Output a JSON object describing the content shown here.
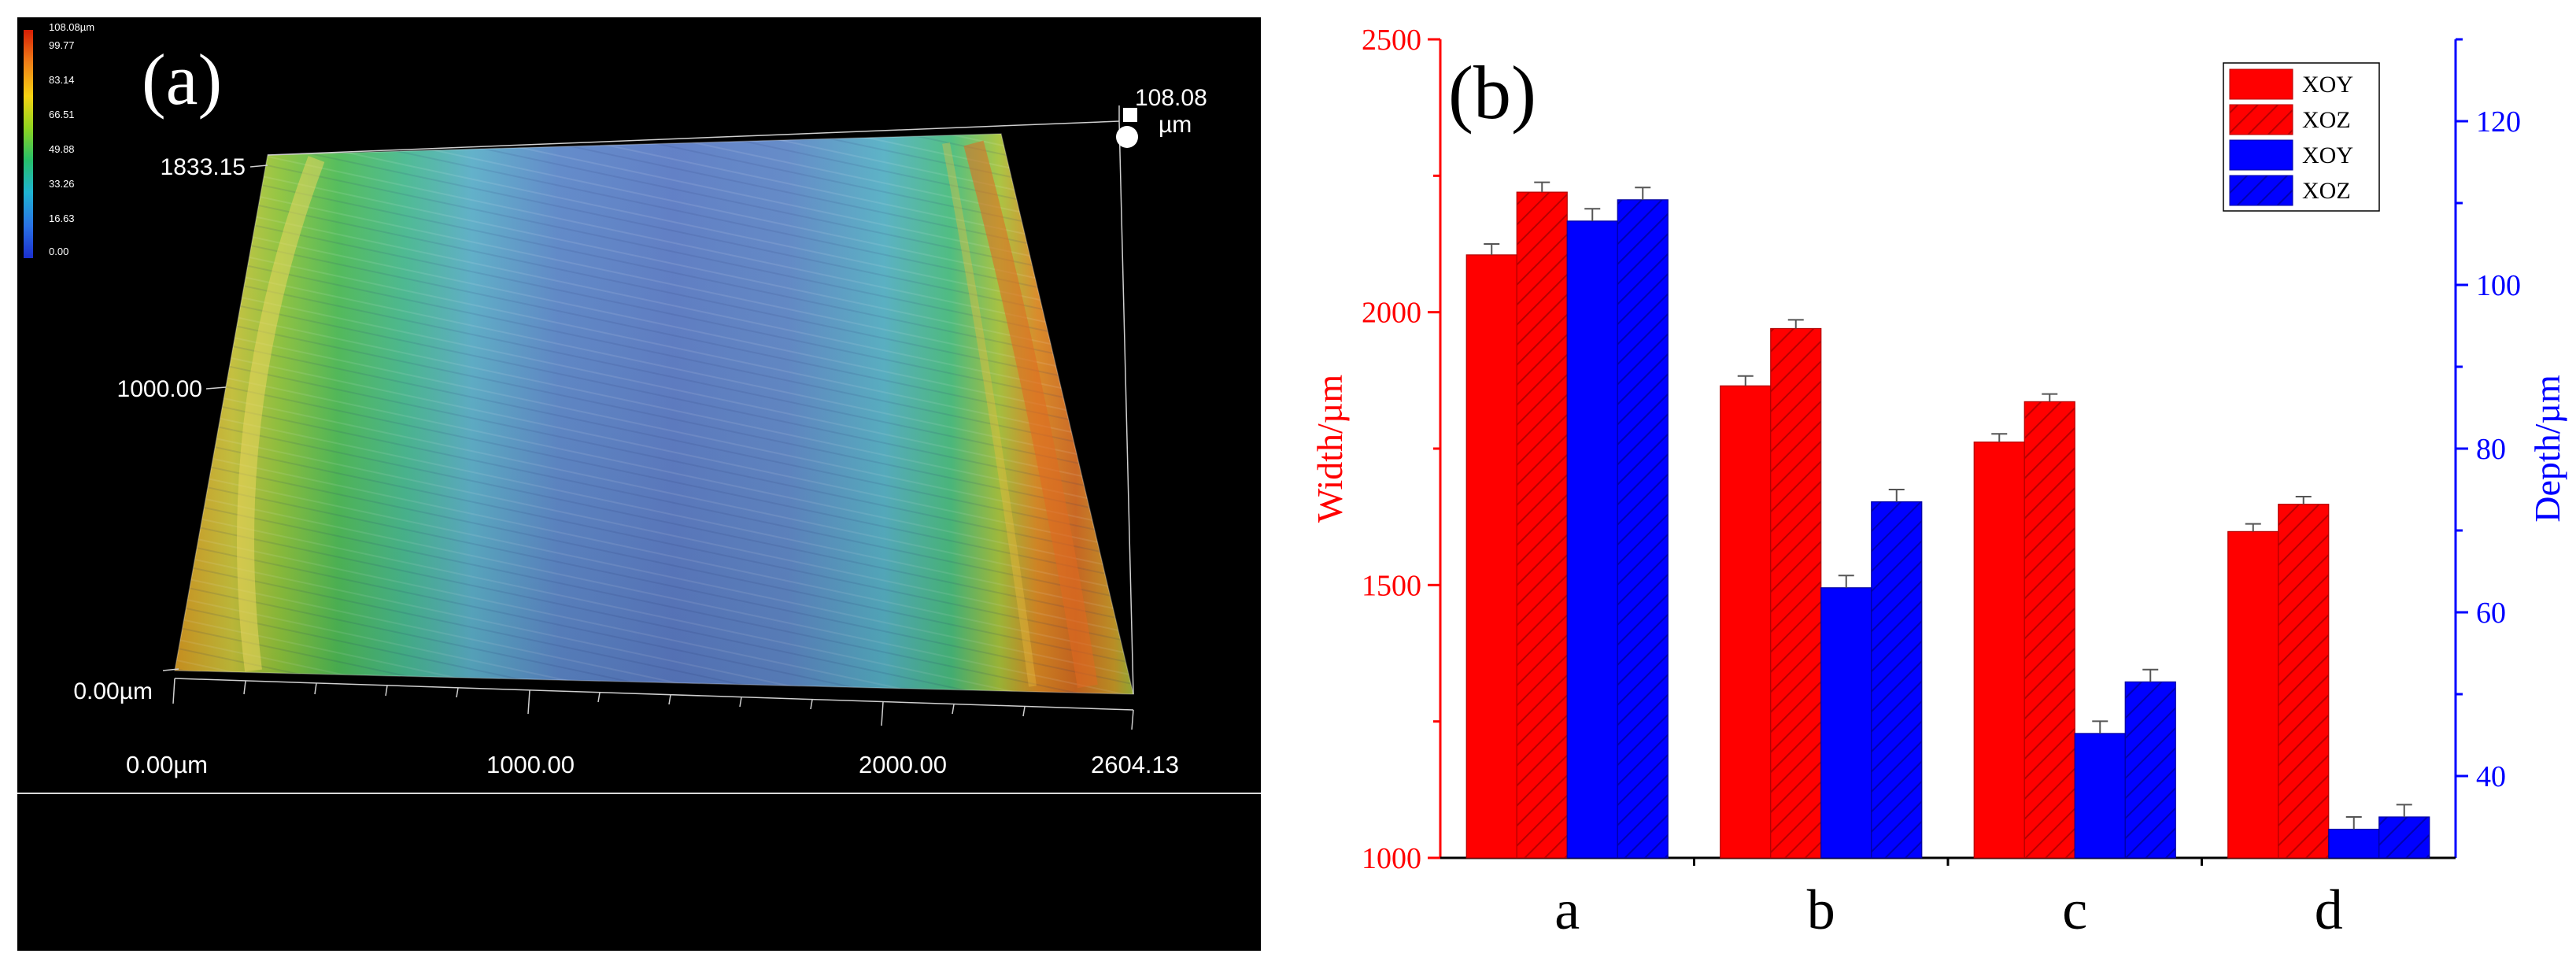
{
  "panel_a": {
    "label": "(a)",
    "colorbar": {
      "ticks": [
        "108.08µm",
        "99.77",
        "83.14",
        "66.51",
        "49.88",
        "33.26",
        "16.63",
        "0.00"
      ],
      "colors": [
        "#d81e05",
        "#f07e18",
        "#f6d312",
        "#8fd420",
        "#27c06a",
        "#1fb5d2",
        "#2a72e6",
        "#1b2fcf"
      ]
    },
    "max_value": "108.08",
    "max_unit": "µm",
    "y_ticks": [
      "1833.15",
      "1000.00",
      "0.00µm"
    ],
    "x_ticks": [
      "0.00µm",
      "1000.00",
      "2000.00",
      "2604.13"
    ]
  },
  "panel_b": {
    "label": "(b)"
  },
  "chart_data": {
    "type": "bar",
    "categories": [
      "a",
      "b",
      "c",
      "d"
    ],
    "ylabel": "Width/µm",
    "ylabel_right": "Depth/µm",
    "ylim": [
      1000,
      2500
    ],
    "ylim_right": [
      30,
      130
    ],
    "yticks": [
      1000,
      1500,
      2000,
      2500
    ],
    "yticks_right": [
      40,
      60,
      80,
      100,
      120
    ],
    "legend": [
      "XOY",
      "XOZ",
      "XOY",
      "XOZ"
    ],
    "legend_position": "top-right",
    "series": [
      {
        "name": "XOY",
        "axis": "left",
        "color": "#ff0000",
        "hatch": false,
        "values": [
          2105,
          1865,
          1762,
          1598
        ],
        "errors": [
          20,
          18,
          15,
          14
        ]
      },
      {
        "name": "XOZ",
        "axis": "left",
        "color": "#ff0000",
        "hatch": true,
        "values": [
          2220,
          1970,
          1836,
          1648
        ],
        "errors": [
          18,
          16,
          14,
          14
        ]
      },
      {
        "name": "XOY",
        "axis": "right",
        "color": "#0000ff",
        "hatch": false,
        "values": [
          107.8,
          63,
          45.2,
          33.5
        ],
        "errors": [
          1.5,
          1.5,
          1.5,
          1.5
        ]
      },
      {
        "name": "XOZ",
        "axis": "right",
        "color": "#0000ff",
        "hatch": true,
        "values": [
          110.4,
          73.5,
          51.5,
          35
        ],
        "errors": [
          1.5,
          1.5,
          1.5,
          1.5
        ]
      }
    ]
  }
}
